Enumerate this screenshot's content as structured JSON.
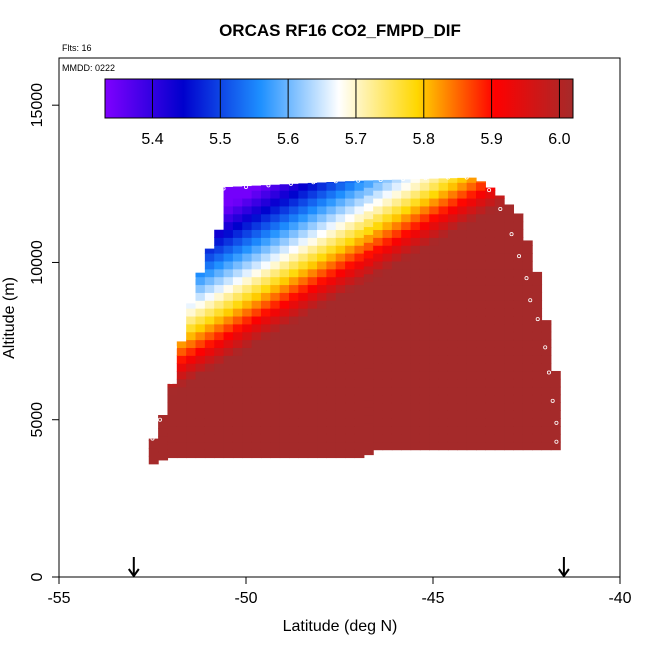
{
  "chart_data": {
    "type": "heatmap",
    "title": "ORCAS RF16 CO2_FMPD_DIF",
    "notes": {
      "flights": "Flts: 16",
      "date": "MMDD: 0222"
    },
    "xlabel": "Latitude (deg N)",
    "ylabel": "Altitude (m)",
    "xlim": [
      -55,
      -40
    ],
    "ylim": [
      0,
      16500
    ],
    "x_ticks": [
      -55,
      -50,
      -45,
      -40
    ],
    "y_ticks": [
      0,
      5000,
      10000,
      15000
    ],
    "grid": false,
    "colorbar": {
      "placement": "top-inside",
      "range": [
        5.33,
        6.02
      ],
      "ticks": [
        5.4,
        5.5,
        5.6,
        5.7,
        5.8,
        5.9,
        6.0
      ],
      "colors": [
        "#7f00ff",
        "#0000cd",
        "#1e90ff",
        "#ffffff",
        "#ffd700",
        "#ff0000",
        "#a52a2a"
      ]
    },
    "field": {
      "x_start": -52.6,
      "x_end": -41.7,
      "x_step": 0.25,
      "y_step": 250,
      "bottom_profile": [
        [
          -52.6,
          3600
        ],
        [
          -52.2,
          3800
        ],
        [
          -47.0,
          3800
        ],
        [
          -46.6,
          4050
        ],
        [
          -41.7,
          4050
        ]
      ],
      "top_profile": [
        [
          -52.6,
          4400
        ],
        [
          -52.2,
          5600
        ],
        [
          -51.7,
          8300
        ],
        [
          -51.4,
          9500
        ],
        [
          -51.2,
          10200
        ],
        [
          -50.7,
          11400
        ],
        [
          -50.6,
          12400
        ],
        [
          -47.1,
          12600
        ],
        [
          -44.0,
          12700
        ],
        [
          -43.5,
          12300
        ],
        [
          -42.8,
          11500
        ],
        [
          -42.3,
          9500
        ],
        [
          -42.0,
          7500
        ],
        [
          -41.7,
          5600
        ]
      ]
    },
    "flight_track_markers": {
      "top": [
        [
          -50.6,
          12350
        ],
        [
          -50.0,
          12400
        ],
        [
          -49.4,
          12450
        ],
        [
          -48.8,
          12500
        ],
        [
          -48.2,
          12550
        ],
        [
          -47.6,
          12580
        ],
        [
          -47.0,
          12600
        ],
        [
          -46.4,
          12620
        ],
        [
          -45.8,
          12650
        ],
        [
          -45.2,
          12680
        ],
        [
          -44.6,
          12700
        ],
        [
          -44.1,
          12700
        ]
      ],
      "left": [
        [
          -52.5,
          4400
        ],
        [
          -52.3,
          5000
        ],
        [
          -52.0,
          6200
        ],
        [
          -51.9,
          7300
        ],
        [
          -51.7,
          8300
        ],
        [
          -51.4,
          9500
        ],
        [
          -51.2,
          10200
        ],
        [
          -51.0,
          10800
        ],
        [
          -50.8,
          11400
        ],
        [
          -50.7,
          11900
        ]
      ],
      "right": [
        [
          -43.5,
          12300
        ],
        [
          -43.2,
          11700
        ],
        [
          -42.9,
          10900
        ],
        [
          -42.7,
          10200
        ],
        [
          -42.5,
          9500
        ],
        [
          -42.4,
          8800
        ],
        [
          -42.2,
          8200
        ],
        [
          -42.0,
          7300
        ],
        [
          -41.9,
          6500
        ],
        [
          -41.8,
          5600
        ],
        [
          -41.7,
          4900
        ],
        [
          -41.7,
          4300
        ]
      ]
    },
    "arrows_x": [
      -53.0,
      -41.5
    ]
  }
}
